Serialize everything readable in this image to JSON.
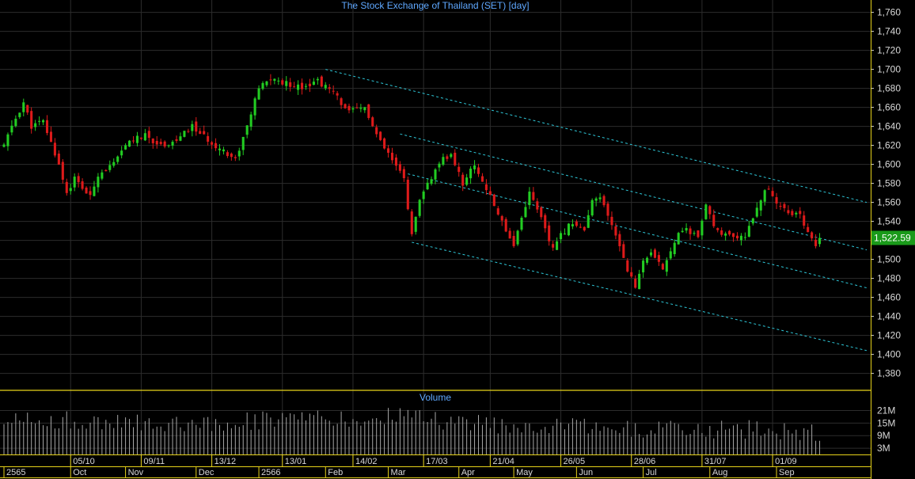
{
  "chart_data": {
    "type": "candlestick",
    "title": "The Stock Exchange of Thailand (SET) [day]",
    "last_price_label": "1,522.59",
    "last_price": 1522.59,
    "price_axis": {
      "ylim": [
        1363,
        1773
      ],
      "ticks": [
        1380,
        1400,
        1420,
        1440,
        1460,
        1480,
        1500,
        1520,
        1540,
        1560,
        1580,
        1600,
        1620,
        1640,
        1660,
        1680,
        1700,
        1720,
        1740,
        1760
      ],
      "tick_labels": [
        "1,380",
        "1,400",
        "1,420",
        "1,440",
        "1,460",
        "1,480",
        "1,500",
        "1,520",
        "1,540",
        "1,560",
        "1,580",
        "1,600",
        "1,620",
        "1,640",
        "1,660",
        "1,680",
        "1,700",
        "1,720",
        "1,740",
        "1,760"
      ]
    },
    "volume_panel": {
      "title": "Volume",
      "ylim": [
        0,
        25
      ],
      "unit": "M",
      "ticks": [
        3,
        9,
        15,
        21
      ],
      "tick_labels": [
        "3M",
        "9M",
        "15M",
        "21M"
      ]
    },
    "x_range": [
      0,
      220
    ],
    "date_labels": [
      {
        "i": 17,
        "label": "05/10"
      },
      {
        "i": 35,
        "label": "09/11"
      },
      {
        "i": 53,
        "label": "13/12"
      },
      {
        "i": 71,
        "label": "13/01"
      },
      {
        "i": 89,
        "label": "14/02"
      },
      {
        "i": 107,
        "label": "17/03"
      },
      {
        "i": 124,
        "label": "21/04"
      },
      {
        "i": 142,
        "label": "26/05"
      },
      {
        "i": 160,
        "label": "28/06"
      },
      {
        "i": 178,
        "label": "31/07"
      },
      {
        "i": 196,
        "label": "01/09"
      }
    ],
    "month_labels": [
      {
        "i": 0,
        "label": "2565"
      },
      {
        "i": 17,
        "label": "Oct"
      },
      {
        "i": 31,
        "label": "Nov"
      },
      {
        "i": 49,
        "label": "Dec"
      },
      {
        "i": 65,
        "label": "2566"
      },
      {
        "i": 82,
        "label": "Feb"
      },
      {
        "i": 98,
        "label": "Mar"
      },
      {
        "i": 116,
        "label": "Apr"
      },
      {
        "i": 130,
        "label": "May"
      },
      {
        "i": 146,
        "label": "Jun"
      },
      {
        "i": 163,
        "label": "Jul"
      },
      {
        "i": 180,
        "label": "Aug"
      },
      {
        "i": 197,
        "label": "Sep"
      }
    ],
    "close_anchors": [
      [
        0,
        1620
      ],
      [
        2,
        1640
      ],
      [
        5,
        1665
      ],
      [
        7,
        1640
      ],
      [
        10,
        1645
      ],
      [
        14,
        1600
      ],
      [
        16,
        1570
      ],
      [
        18,
        1585
      ],
      [
        22,
        1565
      ],
      [
        24,
        1590
      ],
      [
        28,
        1600
      ],
      [
        32,
        1625
      ],
      [
        36,
        1630
      ],
      [
        40,
        1620
      ],
      [
        44,
        1625
      ],
      [
        48,
        1640
      ],
      [
        52,
        1625
      ],
      [
        56,
        1615
      ],
      [
        59,
        1605
      ],
      [
        62,
        1640
      ],
      [
        65,
        1680
      ],
      [
        68,
        1690
      ],
      [
        72,
        1685
      ],
      [
        76,
        1682
      ],
      [
        80,
        1688
      ],
      [
        84,
        1675
      ],
      [
        88,
        1655
      ],
      [
        92,
        1660
      ],
      [
        95,
        1630
      ],
      [
        98,
        1610
      ],
      [
        102,
        1585
      ],
      [
        104,
        1525
      ],
      [
        106,
        1560
      ],
      [
        108,
        1580
      ],
      [
        112,
        1605
      ],
      [
        114,
        1610
      ],
      [
        117,
        1580
      ],
      [
        120,
        1600
      ],
      [
        124,
        1565
      ],
      [
        127,
        1540
      ],
      [
        130,
        1515
      ],
      [
        132,
        1545
      ],
      [
        134,
        1570
      ],
      [
        136,
        1555
      ],
      [
        138,
        1530
      ],
      [
        140,
        1510
      ],
      [
        142,
        1525
      ],
      [
        145,
        1540
      ],
      [
        148,
        1530
      ],
      [
        150,
        1560
      ],
      [
        152,
        1565
      ],
      [
        154,
        1545
      ],
      [
        157,
        1515
      ],
      [
        159,
        1490
      ],
      [
        161,
        1470
      ],
      [
        163,
        1500
      ],
      [
        165,
        1505
      ],
      [
        168,
        1490
      ],
      [
        170,
        1510
      ],
      [
        172,
        1530
      ],
      [
        174,
        1530
      ],
      [
        177,
        1525
      ],
      [
        179,
        1555
      ],
      [
        181,
        1535
      ],
      [
        184,
        1525
      ],
      [
        187,
        1520
      ],
      [
        189,
        1525
      ],
      [
        191,
        1545
      ],
      [
        193,
        1565
      ],
      [
        195,
        1575
      ],
      [
        197,
        1560
      ],
      [
        200,
        1550
      ],
      [
        203,
        1545
      ],
      [
        205,
        1530
      ],
      [
        207,
        1515
      ],
      [
        208,
        1522.59
      ]
    ],
    "volume_anchors": [
      [
        0,
        17
      ],
      [
        20,
        16
      ],
      [
        40,
        15
      ],
      [
        60,
        16
      ],
      [
        75,
        17
      ],
      [
        90,
        16
      ],
      [
        104,
        20
      ],
      [
        110,
        16
      ],
      [
        130,
        14
      ],
      [
        150,
        13
      ],
      [
        170,
        12
      ],
      [
        190,
        12
      ],
      [
        208,
        10
      ]
    ],
    "trend_lines": [
      {
        "i1": 82,
        "v1": 1700,
        "i2": 220,
        "v2": 1560
      },
      {
        "i1": 101,
        "v1": 1632,
        "i2": 220,
        "v2": 1510
      },
      {
        "i1": 103,
        "v1": 1590,
        "i2": 220,
        "v2": 1470
      },
      {
        "i1": 104,
        "v1": 1518,
        "i2": 220,
        "v2": 1404
      }
    ],
    "colors": {
      "background": "#000000",
      "up": "#22cc22",
      "down": "#dd1a1a",
      "volume": "#a7a7a7",
      "trend": "#2ec7d8",
      "grid": "#2c2c2c",
      "axis_text": "#d8d8d8",
      "title": "#5fa8ff",
      "frame": "#e6d21a",
      "last_badge": "#1a9a1a"
    }
  }
}
